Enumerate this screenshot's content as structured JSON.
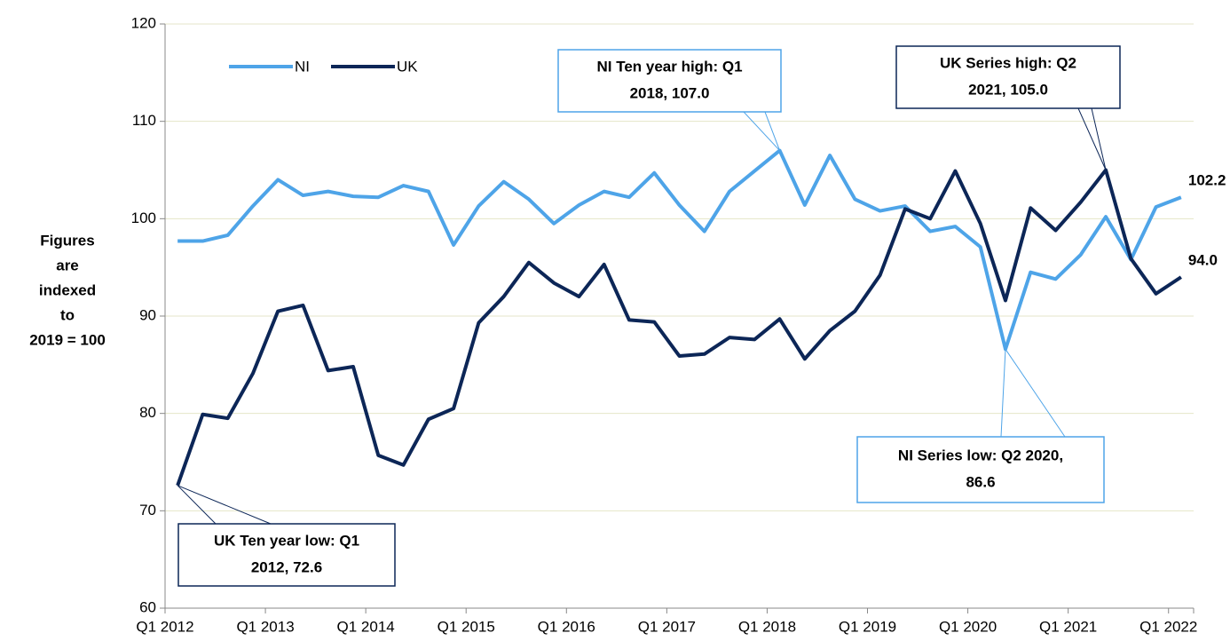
{
  "chart_data": {
    "type": "line",
    "ylabel": [
      "Figures",
      "are",
      "indexed",
      "to",
      "2019 = 100"
    ],
    "categories": [
      "Q1 2012",
      null,
      null,
      null,
      "Q1 2013",
      null,
      null,
      null,
      "Q1 2014",
      null,
      null,
      null,
      "Q1 2015",
      null,
      null,
      null,
      "Q1 2016",
      null,
      null,
      null,
      "Q1 2017",
      null,
      null,
      null,
      "Q1 2018",
      null,
      null,
      null,
      "Q1 2019",
      null,
      null,
      null,
      "Q1 2020",
      null,
      null,
      null,
      "Q1 2021",
      null,
      null,
      null,
      "Q1 2022"
    ],
    "series": [
      {
        "name": "NI",
        "color": "#4ea4e8",
        "values": [
          97.7,
          97.7,
          98.3,
          101.3,
          104.0,
          102.4,
          102.8,
          102.3,
          102.2,
          103.4,
          102.8,
          97.3,
          101.3,
          103.8,
          102.0,
          99.5,
          101.4,
          102.8,
          102.2,
          104.7,
          101.4,
          98.7,
          102.8,
          104.9,
          107.0,
          101.4,
          106.5,
          102.0,
          100.8,
          101.3,
          98.7,
          99.2,
          97.1,
          86.6,
          94.5,
          93.8,
          96.3,
          100.2,
          95.8,
          101.2,
          102.2
        ],
        "value_labels": [
          null,
          null,
          null,
          null,
          null,
          null,
          null,
          null,
          null,
          null,
          null,
          null,
          null,
          null,
          null,
          null,
          null,
          null,
          null,
          null,
          null,
          null,
          null,
          null,
          null,
          null,
          null,
          null,
          null,
          null,
          null,
          null,
          null,
          null,
          null,
          null,
          null,
          null,
          null,
          null,
          "102.2"
        ]
      },
      {
        "name": "UK",
        "color": "#0c2657",
        "values": [
          72.6,
          79.9,
          79.5,
          84.1,
          90.5,
          91.1,
          84.4,
          84.8,
          75.7,
          74.7,
          79.4,
          80.5,
          89.3,
          92.0,
          95.5,
          93.4,
          92.0,
          95.3,
          89.6,
          89.4,
          85.9,
          86.1,
          87.8,
          87.6,
          89.7,
          85.6,
          88.5,
          90.5,
          94.2,
          101.0,
          100.0,
          104.9,
          99.5,
          91.6,
          101.1,
          98.8,
          101.7,
          105.0,
          95.9,
          92.3,
          94.0
        ],
        "value_labels": [
          null,
          null,
          null,
          null,
          null,
          null,
          null,
          null,
          null,
          null,
          null,
          null,
          null,
          null,
          null,
          null,
          null,
          null,
          null,
          null,
          null,
          null,
          null,
          null,
          null,
          null,
          null,
          null,
          null,
          null,
          null,
          null,
          null,
          null,
          null,
          null,
          null,
          null,
          null,
          null,
          "94.0"
        ]
      }
    ],
    "ylim": [
      60,
      120
    ],
    "yticks": [
      60,
      70,
      80,
      90,
      100,
      110,
      120
    ],
    "grid": true,
    "legend": "top-left",
    "annotations": [
      {
        "lines": [
          "NI Ten year high: Q1",
          "2018, 107.0"
        ],
        "color": "#4ea4e8"
      },
      {
        "lines": [
          "UK Series high: Q2",
          "2021, 105.0"
        ],
        "color": "#0c2657"
      },
      {
        "lines": [
          "NI Series low: Q2 2020,",
          "86.6"
        ],
        "color": "#4ea4e8"
      },
      {
        "lines": [
          "UK Ten year low: Q1",
          "2012, 72.6"
        ],
        "color": "#0c2657"
      }
    ]
  }
}
